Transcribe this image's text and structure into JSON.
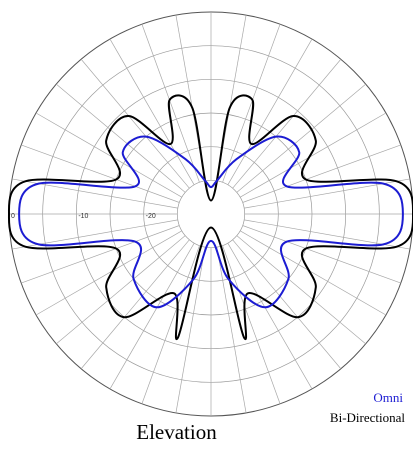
{
  "chart_data": {
    "type": "polar-line",
    "title": "Elevation",
    "radial_axis": {
      "ticks": [
        "0",
        "-10",
        "-20"
      ],
      "range_db": [
        -30,
        0
      ],
      "ring_count": 6,
      "spoke_step_deg": 10
    },
    "series": [
      {
        "name": "Omni",
        "color": "#1c1cd2",
        "points": [
          {
            "theta": 0,
            "db": -1.5
          },
          {
            "theta": 10,
            "db": -4
          },
          {
            "theta": 20,
            "db": -18
          },
          {
            "theta": 35,
            "db": -14
          },
          {
            "theta": 50,
            "db": -15
          },
          {
            "theta": 65,
            "db": -21
          },
          {
            "theta": 80,
            "db": -25
          },
          {
            "theta": 90,
            "db": -26
          },
          {
            "theta": 100,
            "db": -25
          },
          {
            "theta": 115,
            "db": -21
          },
          {
            "theta": 130,
            "db": -15
          },
          {
            "theta": 145,
            "db": -14
          },
          {
            "theta": 160,
            "db": -18
          },
          {
            "theta": 170,
            "db": -4
          },
          {
            "theta": 180,
            "db": -1.5
          },
          {
            "theta": 190,
            "db": -4
          },
          {
            "theta": 200,
            "db": -18
          },
          {
            "theta": 220,
            "db": -15
          },
          {
            "theta": 240,
            "db": -14
          },
          {
            "theta": 255,
            "db": -20
          },
          {
            "theta": 270,
            "db": -26
          },
          {
            "theta": 285,
            "db": -20
          },
          {
            "theta": 300,
            "db": -14
          },
          {
            "theta": 320,
            "db": -15
          },
          {
            "theta": 340,
            "db": -18
          },
          {
            "theta": 350,
            "db": -4
          },
          {
            "theta": 360,
            "db": -1.5
          }
        ]
      },
      {
        "name": "Bi-Directional",
        "color": "#000000",
        "points": [
          {
            "theta": 0,
            "db": 0
          },
          {
            "theta": 10,
            "db": -2
          },
          {
            "theta": 20,
            "db": -15
          },
          {
            "theta": 35,
            "db": -11
          },
          {
            "theta": 50,
            "db": -11
          },
          {
            "theta": 60,
            "db": -18
          },
          {
            "theta": 70,
            "db": -12
          },
          {
            "theta": 80,
            "db": -14
          },
          {
            "theta": 90,
            "db": -28
          },
          {
            "theta": 100,
            "db": -14
          },
          {
            "theta": 110,
            "db": -12
          },
          {
            "theta": 120,
            "db": -18
          },
          {
            "theta": 130,
            "db": -11
          },
          {
            "theta": 145,
            "db": -11
          },
          {
            "theta": 160,
            "db": -15
          },
          {
            "theta": 170,
            "db": -2
          },
          {
            "theta": 180,
            "db": 0
          },
          {
            "theta": 190,
            "db": -2
          },
          {
            "theta": 200,
            "db": -15
          },
          {
            "theta": 215,
            "db": -11
          },
          {
            "theta": 230,
            "db": -10
          },
          {
            "theta": 245,
            "db": -17
          },
          {
            "theta": 255,
            "db": -11
          },
          {
            "theta": 270,
            "db": -28
          },
          {
            "theta": 285,
            "db": -11
          },
          {
            "theta": 295,
            "db": -17
          },
          {
            "theta": 310,
            "db": -10
          },
          {
            "theta": 325,
            "db": -11
          },
          {
            "theta": 340,
            "db": -15
          },
          {
            "theta": 350,
            "db": -2
          },
          {
            "theta": 360,
            "db": 0
          }
        ]
      }
    ],
    "legend": {
      "placement": "bottom-right"
    },
    "grid": true
  }
}
